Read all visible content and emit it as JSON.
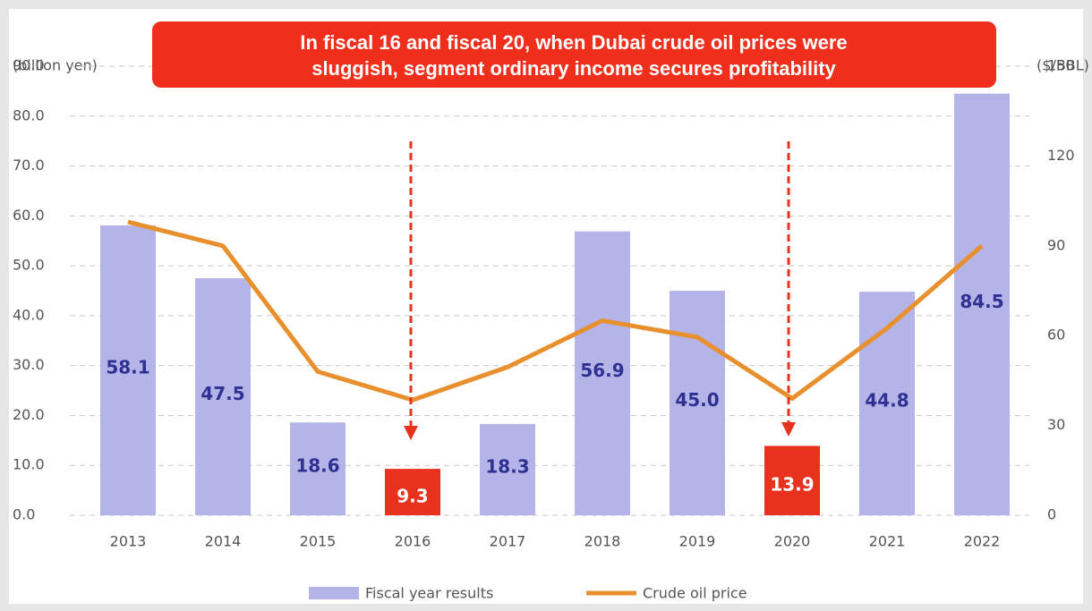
{
  "chart_data": {
    "type": "bar_line",
    "annotation": [
      "In fiscal 16 and fiscal 20, when Dubai crude oil prices were",
      "sluggish, segment ordinary income secures profitability"
    ],
    "ylabel": "(billion yen)",
    "y2label": "($/BBL)",
    "categories": [
      "2013",
      "2014",
      "2015",
      "2016",
      "2017",
      "2018",
      "2019",
      "2020",
      "2021",
      "2022"
    ],
    "series": [
      {
        "name": "Fiscal year results",
        "type": "bar",
        "color": "#b4b4e8",
        "colors": [
          "#b4b4e8",
          "#b4b4e8",
          "#b4b4e8",
          "#e8321e",
          "#b4b4e8",
          "#b4b4e8",
          "#b4b4e8",
          "#e8321e",
          "#b4b4e8",
          "#b4b4e8"
        ],
        "values": [
          58.1,
          47.5,
          18.6,
          9.3,
          18.3,
          56.9,
          45.0,
          13.9,
          44.8,
          84.5
        ],
        "value_labels": [
          "58.1",
          "47.5",
          "18.6",
          "9.3",
          "18.3",
          "56.9",
          "45.0",
          "13.9",
          "44.8",
          "84.5"
        ]
      },
      {
        "name": "Crude oil price",
        "type": "line",
        "axis": "y2",
        "color": "#e8902e",
        "values": [
          98,
          90,
          48,
          38.5,
          49.5,
          65,
          59.5,
          39,
          62.5,
          90
        ]
      }
    ],
    "ylim": [
      0,
      90
    ],
    "yticks": [
      {
        "value": 0,
        "label": "0.0"
      },
      {
        "value": 10,
        "label": "10.0"
      },
      {
        "value": 20,
        "label": "20.0"
      },
      {
        "value": 30,
        "label": "30.0"
      },
      {
        "value": 40,
        "label": "40.0"
      },
      {
        "value": 50,
        "label": "50.0"
      },
      {
        "value": 60,
        "label": "60.0"
      },
      {
        "value": 70,
        "label": "70.0"
      },
      {
        "value": 80,
        "label": "80.0"
      },
      {
        "value": 90,
        "label": "90.0"
      }
    ],
    "y2lim": [
      0,
      150
    ],
    "y2ticks": [
      0,
      30,
      60,
      90,
      120,
      150
    ],
    "grid": true,
    "legend": "bottom"
  }
}
